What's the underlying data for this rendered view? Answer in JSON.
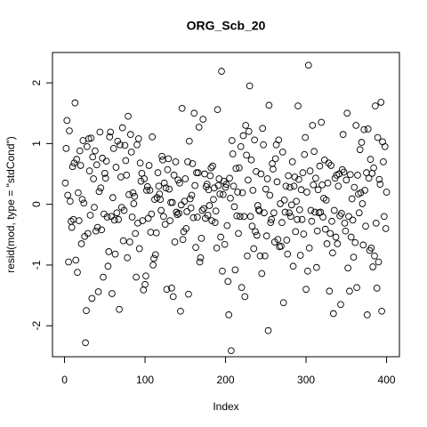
{
  "chart_data": {
    "type": "scatter",
    "title": "ORG_Scb_20",
    "x_label": "Index",
    "y_label": "resid(mod, type = \"stdCond\")",
    "xlim": [
      -14.96,
      415.96
    ],
    "ylim": [
      -2.51,
      2.5
    ],
    "xticks": [
      0,
      100,
      200,
      300,
      400
    ],
    "yticks": [
      -2,
      -1,
      0,
      1,
      2
    ],
    "grid": false,
    "color": "#000000",
    "x": [
      1,
      2,
      3,
      4,
      5,
      6,
      7,
      8,
      9,
      10,
      11,
      12,
      13,
      14,
      15,
      16,
      17,
      18,
      19,
      20,
      21,
      22,
      23,
      24,
      25,
      26,
      27,
      28,
      29,
      30,
      31,
      32,
      33,
      34,
      35,
      36,
      37,
      38,
      39,
      40,
      41,
      42,
      43,
      44,
      45,
      46,
      47,
      48,
      49,
      50,
      51,
      52,
      53,
      54,
      55,
      56,
      57,
      58,
      59,
      60,
      61,
      62,
      63,
      64,
      65,
      66,
      67,
      68,
      69,
      70,
      71,
      72,
      73,
      74,
      75,
      76,
      77,
      78,
      79,
      80,
      81,
      82,
      83,
      84,
      85,
      86,
      87,
      88,
      89,
      90,
      91,
      92,
      93,
      94,
      95,
      96,
      97,
      98,
      99,
      100,
      101,
      102,
      103,
      104,
      105,
      106,
      107,
      108,
      109,
      110,
      111,
      112,
      113,
      114,
      115,
      116,
      117,
      118,
      119,
      120,
      121,
      122,
      123,
      124,
      125,
      126,
      127,
      128,
      129,
      130,
      131,
      132,
      133,
      134,
      135,
      136,
      137,
      138,
      139,
      140,
      141,
      142,
      143,
      144,
      145,
      146,
      147,
      148,
      149,
      150,
      151,
      152,
      153,
      154,
      155,
      156,
      157,
      158,
      159,
      160,
      161,
      162,
      163,
      164,
      165,
      166,
      167,
      168,
      169,
      170,
      171,
      172,
      173,
      174,
      175,
      176,
      177,
      178,
      179,
      180,
      181,
      182,
      183,
      184,
      185,
      186,
      187,
      188,
      189,
      190,
      191,
      192,
      193,
      194,
      195,
      196,
      197,
      198,
      199,
      200,
      201,
      202,
      203,
      204,
      205,
      206,
      207,
      208,
      209,
      210,
      211,
      212,
      213,
      214,
      215,
      216,
      217,
      218,
      219,
      220,
      221,
      222,
      223,
      224,
      225,
      226,
      227,
      228,
      229,
      230,
      231,
      232,
      233,
      234,
      235,
      236,
      237,
      238,
      239,
      240,
      241,
      242,
      243,
      244,
      245,
      246,
      247,
      248,
      249,
      250,
      251,
      252,
      253,
      254,
      255,
      256,
      257,
      258,
      259,
      260,
      261,
      262,
      263,
      264,
      265,
      266,
      267,
      268,
      269,
      270,
      271,
      272,
      273,
      274,
      275,
      276,
      277,
      278,
      279,
      280,
      281,
      282,
      283,
      284,
      285,
      286,
      287,
      288,
      289,
      290,
      291,
      292,
      293,
      294,
      295,
      296,
      297,
      298,
      299,
      300,
      301,
      302,
      303,
      304,
      305,
      306,
      307,
      308,
      309,
      310,
      311,
      312,
      313,
      314,
      315,
      316,
      317,
      318,
      319,
      320,
      321,
      322,
      323,
      324,
      325,
      326,
      327,
      328,
      329,
      330,
      331,
      332,
      333,
      334,
      335,
      336,
      337,
      338,
      339,
      340,
      341,
      342,
      343,
      344,
      345,
      346,
      347,
      348,
      349,
      350,
      351,
      352,
      353,
      354,
      355,
      356,
      357,
      358,
      359,
      360,
      361,
      362,
      363,
      364,
      365,
      366,
      367,
      368,
      369,
      370,
      371,
      372,
      373,
      374,
      375,
      376,
      377,
      378,
      379,
      380,
      381,
      382,
      383,
      384,
      385,
      386,
      387,
      388,
      389,
      390,
      391,
      392,
      393,
      394,
      395,
      396,
      397,
      398,
      399,
      400
    ],
    "values": [
      0.35,
      0.92,
      1.38,
      0.15,
      -0.95,
      1.21,
      0.05,
      -0.28,
      -0.38,
      0.62,
      -0.25,
      0.68,
      1.67,
      -0.92,
      0.74,
      -1.12,
      0.19,
      -0.27,
      0.88,
      0.64,
      -0.65,
      0.08,
      1.05,
      0.02,
      -0.53,
      -2.28,
      -1.75,
      0.95,
      -0.48,
      1.08,
      0.55,
      -0.18,
      1.09,
      -1.55,
      0.78,
      0.42,
      -0.05,
      0.88,
      -0.44,
      0.65,
      -0.38,
      -1.44,
      0.21,
      1.19,
      0.27,
      -0.42,
      0.76,
      -1.2,
      -0.16,
      0.51,
      0.43,
      0.71,
      -0.21,
      -1.02,
      -0.78,
      1.11,
      1.19,
      -0.2,
      -1.47,
      0.11,
      0.92,
      -0.26,
      -0.82,
      0.61,
      -0.14,
      1.04,
      -0.25,
      -1.73,
      0.98,
      0.45,
      -0.05,
      1.26,
      -0.6,
      -0.1,
      0.97,
      0.72,
      0.48,
      -0.88,
      1.45,
      0.16,
      -0.62,
      1.15,
      0.86,
      -0.21,
      0.19,
      0.01,
      0.13,
      -0.48,
      -1.2,
      0.98,
      -0.31,
      1.08,
      -0.73,
      0.68,
      0.38,
      0.51,
      -0.27,
      -1.41,
      0.42,
      -1.32,
      -1.18,
      0.23,
      0.29,
      -0.23,
      0.64,
      0.23,
      -0.46,
      -0.16,
      1.11,
      -1.0,
      -0.89,
      0.08,
      -0.83,
      -0.47,
      0.11,
      0.52,
      0.3,
      0.17,
      0.08,
      -0.1,
      0.79,
      0.73,
      -0.2,
      0.35,
      -0.33,
      0.27,
      -1.4,
      0.57,
      0.75,
      0.25,
      -0.27,
      0.03,
      -1.38,
      0.03,
      -1.52,
      0.48,
      -0.62,
      0.7,
      -0.13,
      -0.17,
      0.4,
      -0.15,
      0.35,
      -1.76,
      -0.01,
      1.58,
      -0.58,
      -0.45,
      0.05,
      0.42,
      -0.4,
      -0.12,
      0.7,
      -1.48,
      1.04,
      0.09,
      -0.06,
      0.15,
      0.67,
      -0.22,
      1.5,
      0.31,
      -0.71,
      0.52,
      -0.21,
      0.52,
      1.27,
      -0.95,
      -0.88,
      -0.56,
      -0.1,
      1.4,
      -0.07,
      0.5,
      -0.23,
      0.29,
      0.33,
      -0.18,
      0.24,
      -0.02,
      0.47,
      0.6,
      -0.27,
      0.63,
      0.08,
      0.27,
      -0.3,
      -0.11,
      -0.72,
      1.56,
      0.31,
      0.42,
      0.17,
      -0.54,
      2.19,
      -1.1,
      0.16,
      0.38,
      -0.66,
      0.28,
      0.33,
      -0.35,
      -1.27,
      -1.82,
      0.43,
      0.1,
      -2.41,
      1.05,
      0.83,
      0.3,
      -0.04,
      -1.08,
      0.59,
      -0.19,
      0.2,
      -0.48,
      0.6,
      -0.2,
      0.95,
      -1.37,
      0.19,
      1.13,
      -0.2,
      -1.52,
      1.3,
      0.81,
      -0.85,
      0.4,
      1.2,
      1.95,
      -0.2,
      0.73,
      -0.36,
      0.23,
      -0.73,
      1.06,
      -0.45,
      0.54,
      -0.51,
      -0.02,
      -0.09,
      -0.11,
      -0.85,
      0.5,
      -1.14,
      1.25,
      0.98,
      -0.14,
      -0.85,
      0.25,
      -0.52,
      0.42,
      -2.08,
      1.63,
      0.15,
      -0.3,
      -0.25,
      0.67,
      0.58,
      -0.14,
      -0.62,
      0.75,
      0.98,
      0.37,
      -0.58,
      1.06,
      -0.7,
      0.01,
      -0.69,
      -0.3,
      0.86,
      -1.62,
      0.07,
      -0.13,
      0.3,
      -0.59,
      -0.82,
      0.47,
      -0.14,
      0.28,
      -0.2,
      -0.01,
      0.7,
      -1.02,
      0.3,
      0.45,
      -0.45,
      0.05,
      -0.25,
      1.62,
      0.41,
      -0.09,
      -0.84,
      0.24,
      -0.25,
      0.52,
      -0.49,
      0.82,
      1.1,
      -1.4,
      0.2,
      -1.1,
      2.29,
      -0.72,
      0.55,
      -0.1,
      -0.28,
      1.3,
      0.32,
      0.87,
      -0.13,
      0.43,
      -1.04,
      -0.44,
      0.24,
      -0.14,
      0.63,
      -0.13,
      1.35,
      0.32,
      -0.21,
      0.1,
      0.73,
      -0.41,
      0.07,
      -0.65,
      0.35,
      0.68,
      -1.43,
      -0.48,
      0.64,
      -0.28,
      -0.8,
      -1.8,
      -0.1,
      0.43,
      -0.54,
      0.48,
      -0.65,
      0.3,
      0.5,
      -0.19,
      -1.65,
      -0.15,
      0.57,
      1.15,
      0.53,
      -0.31,
      -0.44,
      0.4,
      1.5,
      -1.05,
      -0.2,
      -1.43,
      0.49,
      -0.54,
      0.09,
      -0.26,
      -0.87,
      0.28,
      -0.63,
      1.3,
      -1.37,
      0.48,
      0.17,
      -0.14,
      0.9,
      0.19,
      1.02,
      0.01,
      -0.67,
      1.23,
      0.23,
      -0.36,
      0.52,
      -1.82,
      1.24,
      0.43,
      -0.76,
      0.74,
      -0.72,
      0.51,
      -1.03,
      0.6,
      -0.85,
      1.62,
      -0.31,
      -1.38,
      1.1,
      -0.95,
      0.41,
      0.33,
      1.68,
      -1.76,
      1.03,
      0.7,
      -0.2,
      0.95,
      -0.4,
      0.2
    ]
  }
}
